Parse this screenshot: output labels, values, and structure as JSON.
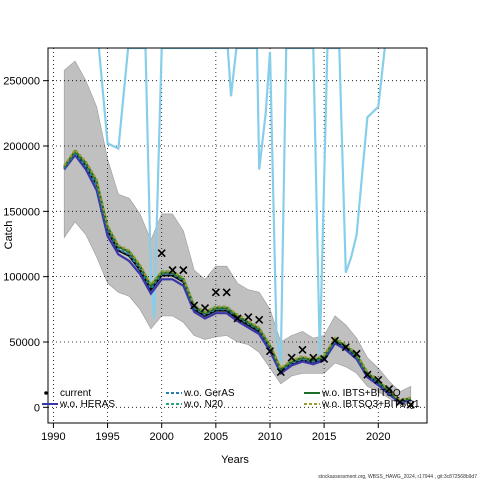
{
  "chart_data": {
    "type": "line",
    "xlabel": "Years",
    "ylabel": "Catch",
    "credit": "stockassessment.org, WBSS_HAWG_2024, r17944 , git:3c872568b9d7",
    "xlim": [
      1989.5,
      2024.5
    ],
    "ylim": [
      -12000,
      275000
    ],
    "xticks": [
      1990,
      1995,
      2000,
      2005,
      2010,
      2015,
      2020
    ],
    "yticks": [
      0,
      50000,
      100000,
      150000,
      200000,
      250000
    ],
    "grid": true,
    "legend_position": "bottom",
    "confidence_band": {
      "x": [
        1991,
        1992,
        1993,
        1994,
        1995,
        1996,
        1997,
        1998,
        1999,
        2000,
        2001,
        2002,
        2003,
        2004,
        2005,
        2006,
        2007,
        2008,
        2009,
        2010,
        2011,
        2012,
        2013,
        2014,
        2015,
        2016,
        2017,
        2018,
        2019,
        2020,
        2021,
        2022,
        2023
      ],
      "upper": [
        258000,
        265000,
        250000,
        230000,
        190000,
        163000,
        160000,
        148000,
        128000,
        148000,
        148000,
        135000,
        105000,
        98000,
        108000,
        108000,
        95000,
        90000,
        88000,
        75000,
        50000,
        55000,
        58000,
        53000,
        55000,
        70000,
        63000,
        53000,
        38000,
        30000,
        20000,
        12000,
        16000
      ],
      "lower": [
        130000,
        142000,
        132000,
        115000,
        95000,
        88000,
        85000,
        75000,
        60000,
        70000,
        70000,
        65000,
        55000,
        52000,
        54000,
        55000,
        50000,
        48000,
        42000,
        30000,
        18000,
        24000,
        26000,
        26000,
        26000,
        34000,
        31000,
        26000,
        16000,
        12000,
        7000,
        2000,
        3000
      ]
    },
    "series": [
      {
        "name": "current",
        "color": "#000000",
        "dash": "solid",
        "values": [
          183000,
          195000,
          185000,
          170000,
          135000,
          120000,
          116000,
          105000,
          90000,
          101000,
          101000,
          96000,
          75000,
          70000,
          74000,
          74000,
          68000,
          63000,
          58000,
          45000,
          27000,
          33000,
          36000,
          34000,
          37000,
          50000,
          45000,
          38000,
          24000,
          18000,
          11000,
          4000,
          6000
        ]
      },
      {
        "name": "w.o. HERAS",
        "color": "#3a35a8",
        "dash": "solid",
        "values": [
          182000,
          193000,
          182000,
          166000,
          131000,
          117000,
          112000,
          102000,
          87000,
          98000,
          98000,
          93000,
          73000,
          68000,
          72000,
          72000,
          66000,
          61000,
          56000,
          43000,
          26000,
          32000,
          35000,
          33000,
          36000,
          49000,
          44000,
          37000,
          23000,
          17000,
          10000,
          3500,
          5500
        ]
      },
      {
        "name": "w.o. GerAS",
        "color": "#2e7db0",
        "dash": "dashed",
        "values": [
          183000,
          195000,
          185000,
          170000,
          136000,
          121000,
          117000,
          106000,
          91000,
          102000,
          102000,
          97000,
          76000,
          71000,
          75000,
          75000,
          69000,
          64000,
          59000,
          46000,
          28000,
          34000,
          37000,
          35000,
          38000,
          51000,
          46000,
          39000,
          25000,
          19000,
          12000,
          4500,
          6500
        ]
      },
      {
        "name": "w.o. N20",
        "color": "#2aa37a",
        "dash": "dashed",
        "values": [
          184000,
          196000,
          186000,
          172000,
          138000,
          123000,
          119000,
          108000,
          93000,
          104000,
          104000,
          99000,
          78000,
          73000,
          77000,
          77000,
          70000,
          65000,
          60000,
          47000,
          29000,
          35000,
          38000,
          36000,
          39000,
          52000,
          47000,
          40000,
          26000,
          20000,
          12000,
          5000,
          7000
        ]
      },
      {
        "name": "w.o. IBTS+BITSQ",
        "color": "#1c6e2a",
        "dash": "solid",
        "values": [
          184000,
          196000,
          187000,
          173000,
          138000,
          123000,
          119000,
          108000,
          93000,
          103000,
          103000,
          98000,
          77000,
          72000,
          76000,
          76000,
          70000,
          65000,
          60000,
          47000,
          29000,
          35000,
          38000,
          36000,
          39000,
          52000,
          47000,
          40000,
          26000,
          20000,
          12000,
          5000,
          7000
        ]
      },
      {
        "name": "w.o. IBTSQ3+BITSQ1",
        "color": "#9c9a2e",
        "dash": "dashed",
        "values": [
          185000,
          197000,
          188000,
          174000,
          139000,
          124000,
          120000,
          109000,
          94000,
          104000,
          104000,
          99000,
          78000,
          73000,
          77000,
          77000,
          71000,
          66000,
          61000,
          48000,
          30000,
          36000,
          39000,
          37000,
          40000,
          53000,
          48000,
          41000,
          27000,
          21000,
          13000,
          5500,
          7500
        ]
      },
      {
        "name": "",
        "color": "#87ceeb",
        "dash": "solid",
        "values": [
          null,
          null,
          null,
          null,
          null,
          null,
          null,
          null,
          null,
          null,
          null,
          null,
          null,
          null,
          null,
          null,
          null,
          null,
          null,
          null,
          null,
          null,
          null,
          null,
          null,
          null,
          null,
          null,
          null,
          null,
          null,
          null,
          null
        ]
      }
    ],
    "light_line": {
      "x": [
        1994.2,
        1995,
        1996,
        1996.9,
        1997.6,
        1998.5,
        1999.0,
        1999.3,
        2000.0,
        2000.4,
        2001.2,
        2001.9,
        2002.6,
        2003.3,
        2003.9,
        2004.6,
        2005.3,
        2005.9,
        2006.1,
        2006.4,
        2006.9,
        2007.6,
        2008.2,
        2008.8,
        2009.0,
        2009.6,
        2010.0,
        2010.6,
        2011.0,
        2011.5,
        2011.9,
        2012.5,
        2013.4,
        2014.0,
        2014.6,
        2015.3,
        2016.0,
        2016.4,
        2017.0,
        2017.5,
        2018.0,
        2019.0,
        2020.0,
        2020.6
      ],
      "values": [
        275000,
        202000,
        198000,
        275000,
        275000,
        275000,
        100000,
        68000,
        275000,
        275000,
        275000,
        275000,
        275000,
        275000,
        275000,
        275000,
        275000,
        275000,
        275000,
        238000,
        275000,
        275000,
        275000,
        275000,
        182000,
        225000,
        272000,
        55000,
        35000,
        275000,
        275000,
        275000,
        275000,
        275000,
        40000,
        275000,
        275000,
        275000,
        103000,
        115000,
        132000,
        222000,
        230000,
        275000
      ]
    },
    "observed": {
      "x": [
        2000,
        2001,
        2002,
        2003,
        2004,
        2005,
        2006,
        2007,
        2008,
        2009,
        2010,
        2011,
        2012,
        2013,
        2014,
        2015,
        2016,
        2017,
        2018,
        2019,
        2020,
        2021,
        2022,
        2023
      ],
      "y": [
        118000,
        105000,
        105000,
        78000,
        76000,
        88000,
        88000,
        68000,
        69000,
        67000,
        43000,
        27000,
        38000,
        44000,
        38000,
        37000,
        51000,
        46000,
        41000,
        25000,
        21000,
        14000,
        4000,
        2000
      ]
    }
  }
}
